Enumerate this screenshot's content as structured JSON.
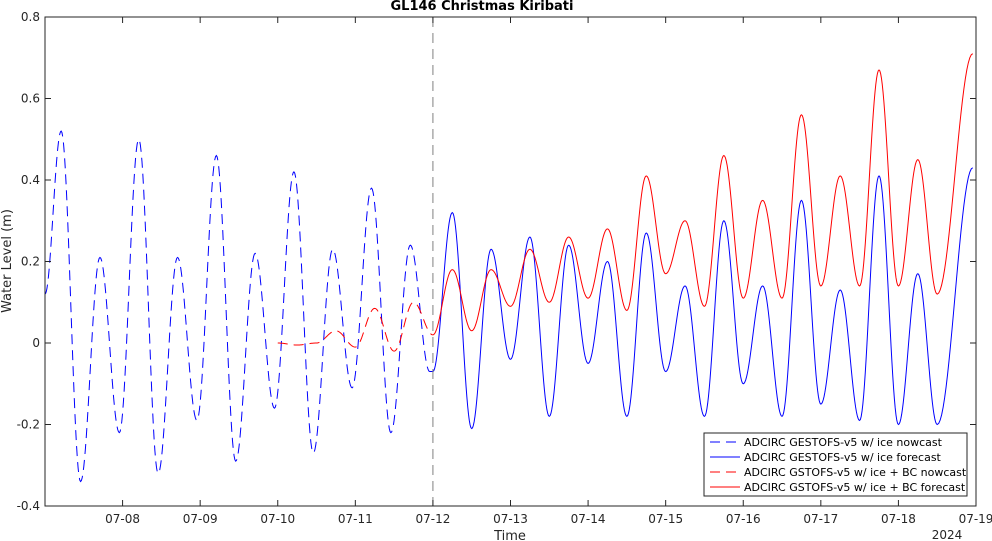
{
  "chart_data": {
    "type": "line",
    "title": "GL146 Christmas Kiribati",
    "xlabel": "Time",
    "ylabel": "Water Level (m)",
    "year_label": "2024",
    "x_range": [
      "2024-07-07T00:00",
      "2024-07-19T00:00"
    ],
    "ylim": [
      -0.4,
      0.8
    ],
    "yticks": [
      -0.4,
      -0.2,
      0,
      0.2,
      0.4,
      0.6,
      0.8
    ],
    "ytick_labels": [
      "-0.4",
      "-0.2",
      "0",
      "0.2",
      "0.4",
      "0.6",
      "0.8"
    ],
    "xticks": [
      "2024-07-08",
      "2024-07-09",
      "2024-07-10",
      "2024-07-11",
      "2024-07-12",
      "2024-07-13",
      "2024-07-14",
      "2024-07-15",
      "2024-07-16",
      "2024-07-17",
      "2024-07-18",
      "2024-07-19"
    ],
    "xtick_labels": [
      "07-08",
      "07-09",
      "07-10",
      "07-11",
      "07-12",
      "07-13",
      "07-14",
      "07-15",
      "07-16",
      "07-17",
      "07-18",
      "07-19"
    ],
    "forecast_start": "2024-07-12T00:00",
    "grid": false,
    "legend_position": "bottom-right",
    "series": [
      {
        "name": "ADCIRC GESTOFS-v5 w/ ice nowcast",
        "color": "#0000ff",
        "style": "dashed",
        "points": [
          [
            "07-07 00:00",
            0.12
          ],
          [
            "07-07 05:00",
            0.52
          ],
          [
            "07-07 11:00",
            -0.34
          ],
          [
            "07-07 17:00",
            0.21
          ],
          [
            "07-07 23:00",
            -0.22
          ],
          [
            "07-08 05:00",
            0.5
          ],
          [
            "07-08 11:00",
            -0.32
          ],
          [
            "07-08 17:00",
            0.21
          ],
          [
            "07-08 23:00",
            -0.19
          ],
          [
            "07-09 05:00",
            0.46
          ],
          [
            "07-09 11:00",
            -0.29
          ],
          [
            "07-09 17:00",
            0.22
          ],
          [
            "07-09 23:00",
            -0.16
          ],
          [
            "07-10 05:00",
            0.42
          ],
          [
            "07-10 11:00",
            -0.27
          ],
          [
            "07-10 17:00",
            0.23
          ],
          [
            "07-10 23:00",
            -0.11
          ],
          [
            "07-11 05:00",
            0.38
          ],
          [
            "07-11 11:00",
            -0.22
          ],
          [
            "07-11 17:00",
            0.24
          ],
          [
            "07-11 23:00",
            -0.07
          ],
          [
            "07-12 00:00",
            -0.07
          ]
        ]
      },
      {
        "name": "ADCIRC GESTOFS-v5 w/ ice forecast",
        "color": "#0000ff",
        "style": "solid",
        "points": [
          [
            "07-12 00:00",
            -0.07
          ],
          [
            "07-12 06:00",
            0.32
          ],
          [
            "07-12 12:00",
            -0.21
          ],
          [
            "07-12 18:00",
            0.23
          ],
          [
            "07-13 00:00",
            -0.04
          ],
          [
            "07-13 06:00",
            0.26
          ],
          [
            "07-13 12:00",
            -0.18
          ],
          [
            "07-13 18:00",
            0.24
          ],
          [
            "07-14 00:00",
            -0.05
          ],
          [
            "07-14 06:00",
            0.2
          ],
          [
            "07-14 12:00",
            -0.18
          ],
          [
            "07-14 18:00",
            0.27
          ],
          [
            "07-15 00:00",
            -0.07
          ],
          [
            "07-15 06:00",
            0.14
          ],
          [
            "07-15 12:00",
            -0.18
          ],
          [
            "07-15 18:00",
            0.3
          ],
          [
            "07-16 00:00",
            -0.1
          ],
          [
            "07-16 06:00",
            0.14
          ],
          [
            "07-16 12:00",
            -0.18
          ],
          [
            "07-16 18:00",
            0.35
          ],
          [
            "07-17 00:00",
            -0.15
          ],
          [
            "07-17 06:00",
            0.13
          ],
          [
            "07-17 12:00",
            -0.19
          ],
          [
            "07-17 18:00",
            0.41
          ],
          [
            "07-18 00:00",
            -0.2
          ],
          [
            "07-18 06:00",
            0.17
          ],
          [
            "07-18 12:00",
            -0.2
          ],
          [
            "07-18 23:00",
            0.43
          ]
        ]
      },
      {
        "name": "ADCIRC GSTOFS-v5 w/ ice + BC nowcast",
        "color": "#ff0000",
        "style": "dashed",
        "points": [
          [
            "07-10 00:00",
            0.0
          ],
          [
            "07-10 06:00",
            -0.005
          ],
          [
            "07-10 12:00",
            0.0
          ],
          [
            "07-10 18:00",
            0.03
          ],
          [
            "07-11 00:00",
            -0.01
          ],
          [
            "07-11 06:00",
            0.085
          ],
          [
            "07-11 12:00",
            -0.02
          ],
          [
            "07-11 18:00",
            0.1
          ],
          [
            "07-12 00:00",
            0.02
          ]
        ]
      },
      {
        "name": "ADCIRC GSTOFS-v5 w/ ice + BC forecast",
        "color": "#ff0000",
        "style": "solid",
        "points": [
          [
            "07-12 00:00",
            0.02
          ],
          [
            "07-12 06:00",
            0.18
          ],
          [
            "07-12 12:00",
            0.03
          ],
          [
            "07-12 18:00",
            0.18
          ],
          [
            "07-13 00:00",
            0.09
          ],
          [
            "07-13 06:00",
            0.23
          ],
          [
            "07-13 12:00",
            0.1
          ],
          [
            "07-13 18:00",
            0.26
          ],
          [
            "07-14 00:00",
            0.11
          ],
          [
            "07-14 06:00",
            0.28
          ],
          [
            "07-14 12:00",
            0.08
          ],
          [
            "07-14 18:00",
            0.41
          ],
          [
            "07-15 00:00",
            0.17
          ],
          [
            "07-15 06:00",
            0.3
          ],
          [
            "07-15 12:00",
            0.09
          ],
          [
            "07-15 18:00",
            0.46
          ],
          [
            "07-16 00:00",
            0.11
          ],
          [
            "07-16 06:00",
            0.35
          ],
          [
            "07-16 12:00",
            0.11
          ],
          [
            "07-16 18:00",
            0.56
          ],
          [
            "07-17 00:00",
            0.14
          ],
          [
            "07-17 06:00",
            0.41
          ],
          [
            "07-17 12:00",
            0.14
          ],
          [
            "07-17 18:00",
            0.67
          ],
          [
            "07-18 00:00",
            0.14
          ],
          [
            "07-18 06:00",
            0.45
          ],
          [
            "07-18 12:00",
            0.12
          ],
          [
            "07-18 23:00",
            0.71
          ]
        ]
      }
    ]
  }
}
